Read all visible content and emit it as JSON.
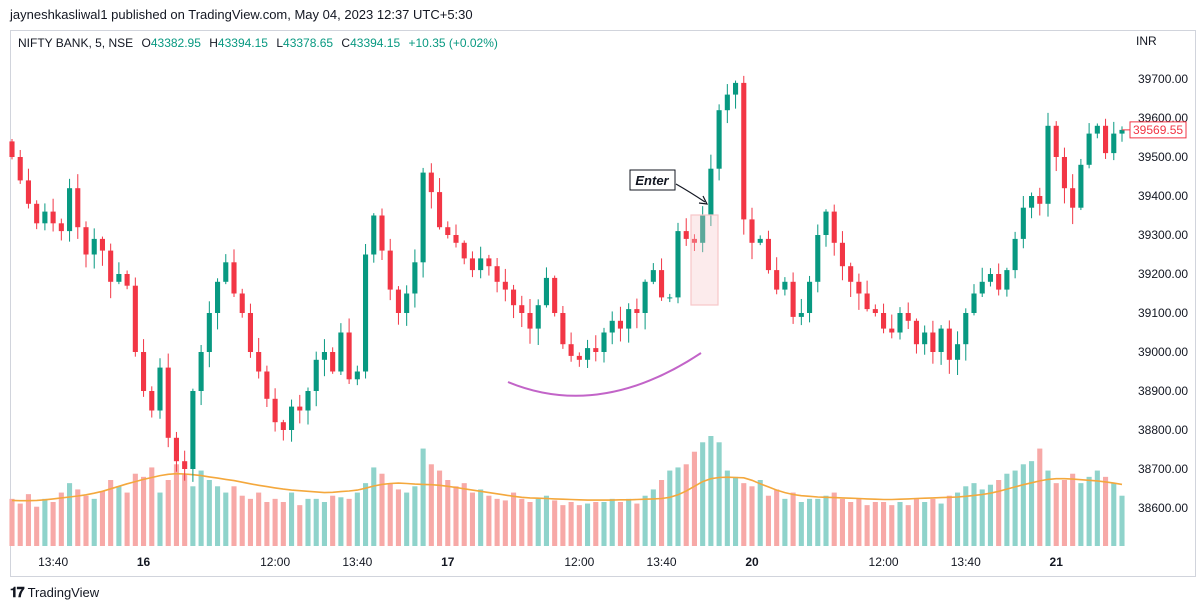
{
  "header": {
    "published": "jayneshkasliwal1 published on TradingView.com, May 04, 2023 12:37 UTC+5:30"
  },
  "legend": {
    "symbol": "NIFTY BANK, 5, NSE",
    "o_label": "O",
    "o_value": "43382.95",
    "h_label": "H",
    "h_value": "43394.15",
    "l_label": "L",
    "l_value": "43378.65",
    "c_label": "C",
    "c_value": "43394.15",
    "change": "+10.35 (+0.02%)"
  },
  "currency": "INR",
  "footer": {
    "brand": "TradingView"
  },
  "colors": {
    "up": "#089981",
    "down": "#f23645",
    "vol_up": "#8fd3cb",
    "vol_down": "#f7a9a7",
    "ma": "#f4a83d",
    "arc": "#c264c8",
    "box": "#f7c6c9"
  },
  "chart_data": {
    "type": "candlestick",
    "symbol": "NIFTY BANK",
    "interval": "5",
    "ylim": [
      38500,
      39800
    ],
    "yticks": [
      38600,
      38700,
      38800,
      38900,
      39000,
      39100,
      39200,
      39300,
      39400,
      39500,
      39600,
      39700
    ],
    "ytick_labels": [
      "38600.00",
      "38700.00",
      "38800.00",
      "38900.00",
      "39000.00",
      "39100.00",
      "39200.00",
      "39300.00",
      "39400.00",
      "39500.00",
      "39600.00",
      "39700.00"
    ],
    "x_labels": [
      {
        "index": 5,
        "text": "13:40"
      },
      {
        "index": 16,
        "text": "16"
      },
      {
        "index": 32,
        "text": "12:00"
      },
      {
        "index": 42,
        "text": "13:40"
      },
      {
        "index": 53,
        "text": "17"
      },
      {
        "index": 69,
        "text": "12:00"
      },
      {
        "index": 79,
        "text": "13:40"
      },
      {
        "index": 90,
        "text": "20"
      },
      {
        "index": 106,
        "text": "12:00"
      },
      {
        "index": 116,
        "text": "13:40"
      },
      {
        "index": 127,
        "text": "21"
      }
    ],
    "last_price": 39569.55,
    "last_price_label": "39569.55",
    "annotations": {
      "enter_label": "Enter"
    },
    "closes": [
      39500,
      39440,
      39380,
      39330,
      39360,
      39330,
      39310,
      39420,
      39320,
      39250,
      39290,
      39260,
      39180,
      39200,
      39170,
      39000,
      38900,
      38850,
      38960,
      38780,
      38720,
      38700,
      38900,
      39000,
      39100,
      39180,
      39230,
      39150,
      39100,
      39000,
      38950,
      38880,
      38820,
      38800,
      38860,
      38850,
      38900,
      38980,
      39000,
      38950,
      39050,
      38930,
      38950,
      39250,
      39350,
      39260,
      39160,
      39100,
      39150,
      39230,
      39460,
      39410,
      39320,
      39300,
      39280,
      39240,
      39210,
      39240,
      39220,
      39180,
      39160,
      39120,
      39100,
      39060,
      39120,
      39190,
      39100,
      39020,
      38990,
      38980,
      39010,
      39000,
      39050,
      39080,
      39060,
      39110,
      39100,
      39180,
      39210,
      39140,
      39140,
      39310,
      39290,
      39280,
      39350,
      39470,
      39620,
      39660,
      39690,
      39340,
      39280,
      39290,
      39210,
      39160,
      39180,
      39090,
      39100,
      39180,
      39300,
      39360,
      39280,
      39220,
      39180,
      39150,
      39110,
      39100,
      39060,
      39050,
      39100,
      39080,
      39020,
      39050,
      39000,
      39060,
      38980,
      39020,
      39100,
      39150,
      39180,
      39200,
      39160,
      39210,
      39290,
      39370,
      39400,
      39380,
      39580,
      39500,
      39420,
      39370,
      39480,
      39560,
      39580,
      39510,
      39560,
      39569.55
    ],
    "volumes": [
      150,
      135,
      165,
      125,
      150,
      140,
      170,
      200,
      180,
      160,
      150,
      175,
      210,
      190,
      170,
      230,
      220,
      250,
      170,
      210,
      260,
      230,
      190,
      240,
      210,
      190,
      170,
      190,
      160,
      150,
      170,
      140,
      150,
      140,
      170,
      130,
      150,
      150,
      140,
      160,
      155,
      150,
      170,
      200,
      250,
      230,
      200,
      180,
      170,
      190,
      310,
      260,
      240,
      210,
      190,
      200,
      170,
      180,
      160,
      150,
      145,
      170,
      150,
      140,
      150,
      160,
      145,
      130,
      140,
      130,
      135,
      140,
      140,
      150,
      140,
      150,
      135,
      160,
      180,
      210,
      240,
      250,
      260,
      300,
      330,
      350,
      330,
      240,
      220,
      200,
      190,
      210,
      160,
      180,
      150,
      170,
      140,
      150,
      150,
      160,
      170,
      150,
      140,
      150,
      130,
      140,
      140,
      130,
      140,
      130,
      150,
      140,
      150,
      135,
      160,
      170,
      190,
      200,
      180,
      195,
      210,
      230,
      240,
      260,
      270,
      310,
      240,
      200,
      210,
      230,
      200,
      220,
      240,
      220,
      200,
      160
    ],
    "ma_values": [
      145,
      144,
      144,
      145,
      147,
      150,
      153,
      156,
      159,
      163,
      168,
      174,
      182,
      190,
      198,
      205,
      212,
      218,
      224,
      228,
      230,
      229,
      227,
      224,
      220,
      216,
      212,
      208,
      203,
      198,
      193,
      189,
      185,
      181,
      178,
      176,
      174,
      172,
      170,
      171,
      173,
      175,
      178,
      184,
      191,
      196,
      199,
      200,
      199,
      197,
      196,
      195,
      193,
      190,
      186,
      182,
      178,
      174,
      170,
      166,
      162,
      158,
      155,
      153,
      152,
      151,
      150,
      149,
      148,
      147,
      146,
      146,
      146,
      146,
      147,
      147,
      148,
      149,
      150,
      151,
      155,
      163,
      175,
      190,
      205,
      214,
      218,
      219,
      218,
      217,
      209,
      198,
      188,
      178,
      170,
      164,
      160,
      158,
      156,
      155,
      154,
      153,
      152,
      151,
      150,
      149,
      148,
      148,
      149,
      150,
      151,
      152,
      153,
      154,
      155,
      156,
      158,
      161,
      164,
      168,
      174,
      181,
      188,
      195,
      201,
      207,
      212,
      214,
      214,
      213,
      211,
      209,
      207,
      204,
      200,
      196
    ]
  }
}
